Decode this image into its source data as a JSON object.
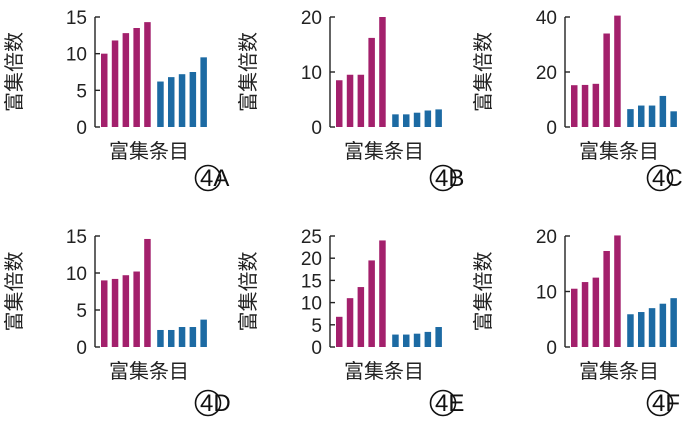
{
  "colors": {
    "enriched": "#a3206c",
    "control": "#1c6aa3",
    "axis": "#222222"
  },
  "chart_data": [
    {
      "type": "bar",
      "panel_label": "4A",
      "xlabel": "富集条目",
      "ylabel": "富集倍数",
      "ylim": [
        0,
        15
      ],
      "yticks": [
        0,
        5,
        10,
        15
      ],
      "series": [
        {
          "values": [
            10,
            11.8,
            12.8,
            13.5,
            14.3
          ]
        },
        {
          "values": [
            6.2,
            6.8,
            7.2,
            7.5,
            9.5
          ]
        }
      ]
    },
    {
      "type": "bar",
      "panel_label": "4B",
      "xlabel": "富集条目",
      "ylabel": "富集倍数",
      "ylim": [
        0,
        20
      ],
      "yticks": [
        0,
        10,
        20
      ],
      "series": [
        {
          "values": [
            8.5,
            9.5,
            9.5,
            16.2,
            20
          ]
        },
        {
          "values": [
            2.3,
            2.3,
            2.6,
            3.0,
            3.2
          ]
        }
      ]
    },
    {
      "type": "bar",
      "panel_label": "4C",
      "xlabel": "富集条目",
      "ylabel": "富集倍数",
      "ylim": [
        0,
        40
      ],
      "yticks": [
        0,
        20,
        40
      ],
      "series": [
        {
          "values": [
            15.2,
            15.3,
            15.7,
            34,
            40.5
          ]
        },
        {
          "values": [
            6.5,
            7.8,
            7.8,
            11.3,
            5.7
          ]
        }
      ]
    },
    {
      "type": "bar",
      "panel_label": "4D",
      "xlabel": "富集条目",
      "ylabel": "富集倍数",
      "ylim": [
        0,
        15
      ],
      "yticks": [
        0,
        5,
        10,
        15
      ],
      "series": [
        {
          "values": [
            9,
            9.2,
            9.7,
            10.2,
            14.6
          ]
        },
        {
          "values": [
            2.3,
            2.3,
            2.7,
            2.7,
            3.7
          ]
        }
      ]
    },
    {
      "type": "bar",
      "panel_label": "4E",
      "xlabel": "富集条目",
      "ylabel": "富集倍数",
      "ylim": [
        0,
        25
      ],
      "yticks": [
        0,
        5,
        10,
        15,
        20,
        25
      ],
      "series": [
        {
          "values": [
            6.8,
            11,
            13.5,
            19.5,
            24
          ]
        },
        {
          "values": [
            2.8,
            2.8,
            3.0,
            3.4,
            4.5
          ]
        }
      ]
    },
    {
      "type": "bar",
      "panel_label": "4F",
      "xlabel": "富集条目",
      "ylabel": "富集倍数",
      "ylim": [
        0,
        20
      ],
      "yticks": [
        0,
        10,
        20
      ],
      "series": [
        {
          "values": [
            10.5,
            11.7,
            12.5,
            17.3,
            20.1
          ]
        },
        {
          "values": [
            5.9,
            6.3,
            7.0,
            7.8,
            8.8
          ]
        }
      ]
    }
  ]
}
